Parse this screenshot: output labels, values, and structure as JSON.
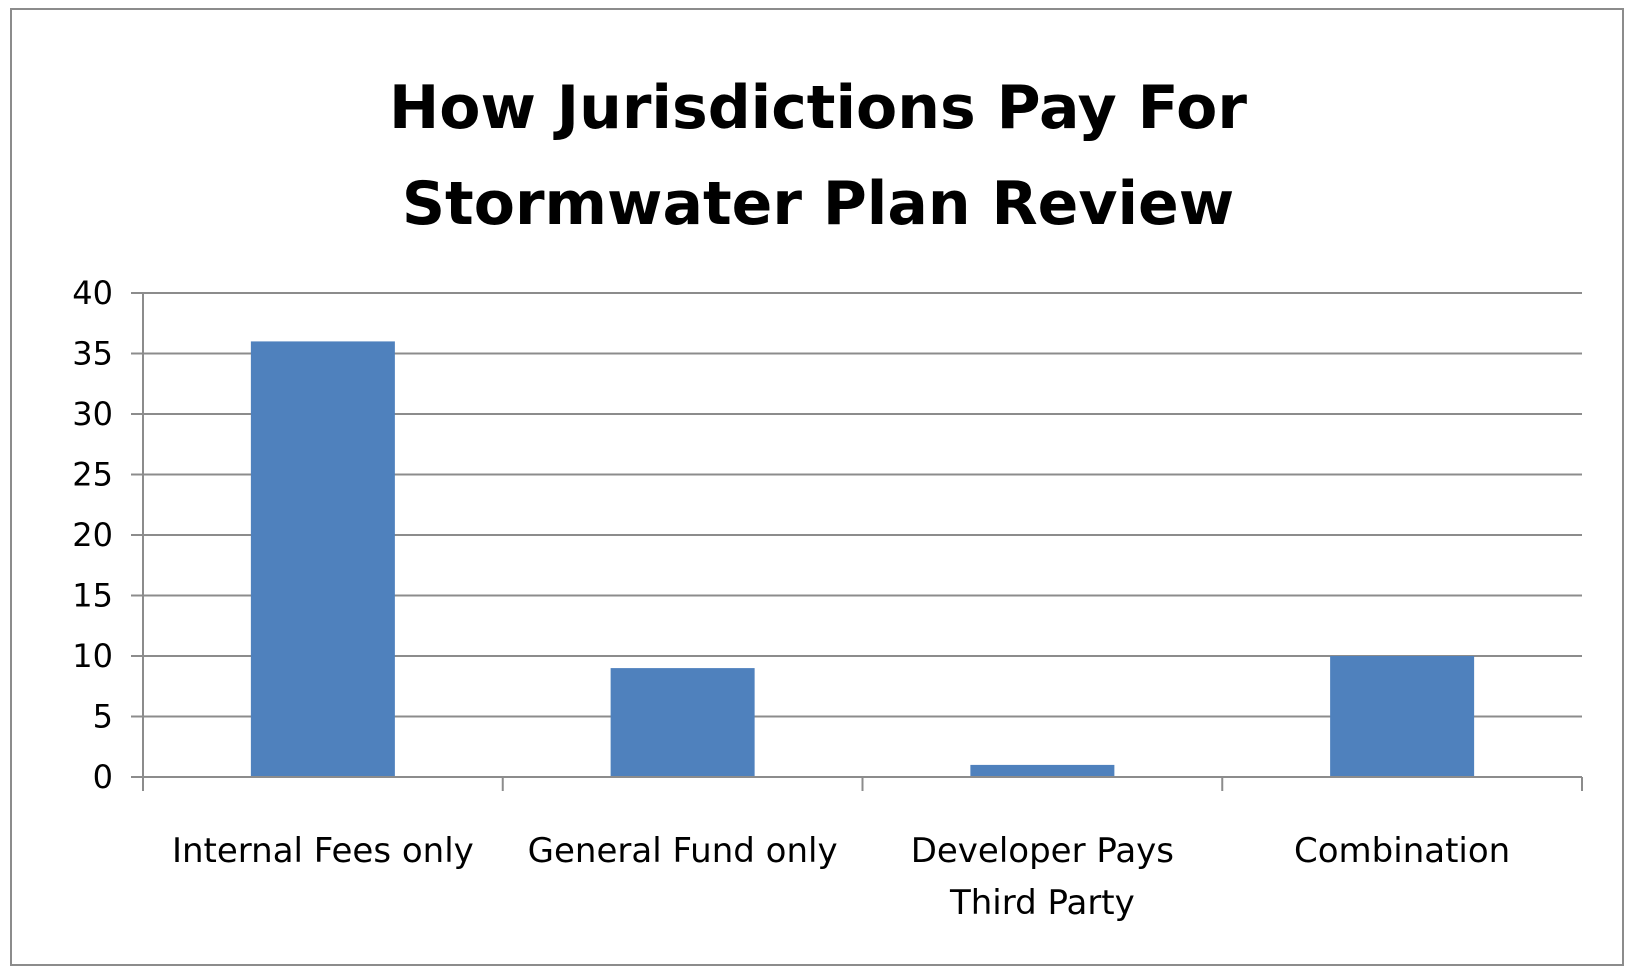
{
  "chart_data": {
    "type": "bar",
    "title": "How Jurisdictions Pay For Stormwater Plan Review",
    "title_lines": [
      "How Jurisdictions Pay For",
      "Stormwater Plan Review"
    ],
    "categories": [
      "Internal Fees only",
      "General Fund only",
      "Developer Pays Third Party",
      "Combination"
    ],
    "category_lines": [
      [
        "Internal Fees only"
      ],
      [
        "General Fund only"
      ],
      [
        "Developer Pays",
        "Third Party"
      ],
      [
        "Combination"
      ]
    ],
    "values": [
      36,
      9,
      1,
      10
    ],
    "ylim": [
      0,
      40
    ],
    "yticks": [
      "0",
      "5",
      "10",
      "15",
      "20",
      "25",
      "30",
      "35",
      "40"
    ],
    "xlabel": "",
    "ylabel": "",
    "grid": true,
    "legend": "none",
    "bar_color": "#4f81bd",
    "grid_color": "#8c8c8c",
    "axis_color": "#8c8c8c"
  }
}
